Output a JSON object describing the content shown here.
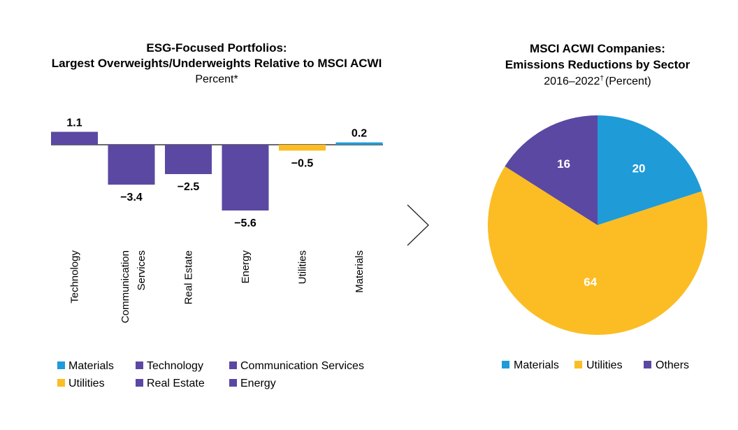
{
  "colors": {
    "materials": "#1f9bd7",
    "utilities": "#fbbd23",
    "purple": "#5b48a2",
    "divider": "#222222"
  },
  "chart_data": [
    {
      "type": "bar",
      "title_line1": "ESG-Focused Portfolios:",
      "title_line2": "Largest Overweights/Underweights Relative to MSCI ACWI",
      "subtitle": "Percent*",
      "categories": [
        "Technology",
        "Communication Services",
        "Real Estate",
        "Energy",
        "Utilities",
        "Materials"
      ],
      "category_lines": [
        [
          "Technology"
        ],
        [
          "Communication",
          "Services"
        ],
        [
          "Real Estate"
        ],
        [
          "Energy"
        ],
        [
          "Utilities"
        ],
        [
          "Materials"
        ]
      ],
      "values": [
        1.1,
        -3.4,
        -2.5,
        -5.6,
        -0.5,
        0.2
      ],
      "value_labels": [
        "1.1",
        "−3.4",
        "−2.5",
        "−5.6",
        "−0.5",
        "0.2"
      ],
      "bar_colors": [
        "#5b48a2",
        "#5b48a2",
        "#5b48a2",
        "#5b48a2",
        "#fbbd23",
        "#1f9bd7"
      ],
      "ylim": [
        -5.6,
        1.1
      ],
      "grid": false,
      "legend_position": "bottom",
      "legend": [
        {
          "name": "Materials",
          "color": "#1f9bd7"
        },
        {
          "name": "Technology",
          "color": "#5b48a2"
        },
        {
          "name": "Communication Services",
          "color": "#5b48a2"
        },
        {
          "name": "Utilities",
          "color": "#fbbd23"
        },
        {
          "name": "Real Estate",
          "color": "#5b48a2"
        },
        {
          "name": "Energy",
          "color": "#5b48a2"
        }
      ]
    },
    {
      "type": "pie",
      "title_line1": "MSCI ACWI Companies:",
      "title_line2": "Emissions Reductions by Sector",
      "subtitle_main": "2016–2022",
      "subtitle_mark": "†",
      "subtitle_tail": "(Percent)",
      "slices": [
        {
          "name": "Materials",
          "value": 20,
          "label": "20",
          "color": "#1f9bd7"
        },
        {
          "name": "Utilities",
          "value": 64,
          "label": "64",
          "color": "#fbbd23"
        },
        {
          "name": "Others",
          "value": 16,
          "label": "16",
          "color": "#5b48a2"
        }
      ],
      "legend_position": "bottom",
      "legend": [
        {
          "name": "Materials",
          "color": "#1f9bd7"
        },
        {
          "name": "Utilities",
          "color": "#fbbd23"
        },
        {
          "name": "Others",
          "color": "#5b48a2"
        }
      ]
    }
  ]
}
